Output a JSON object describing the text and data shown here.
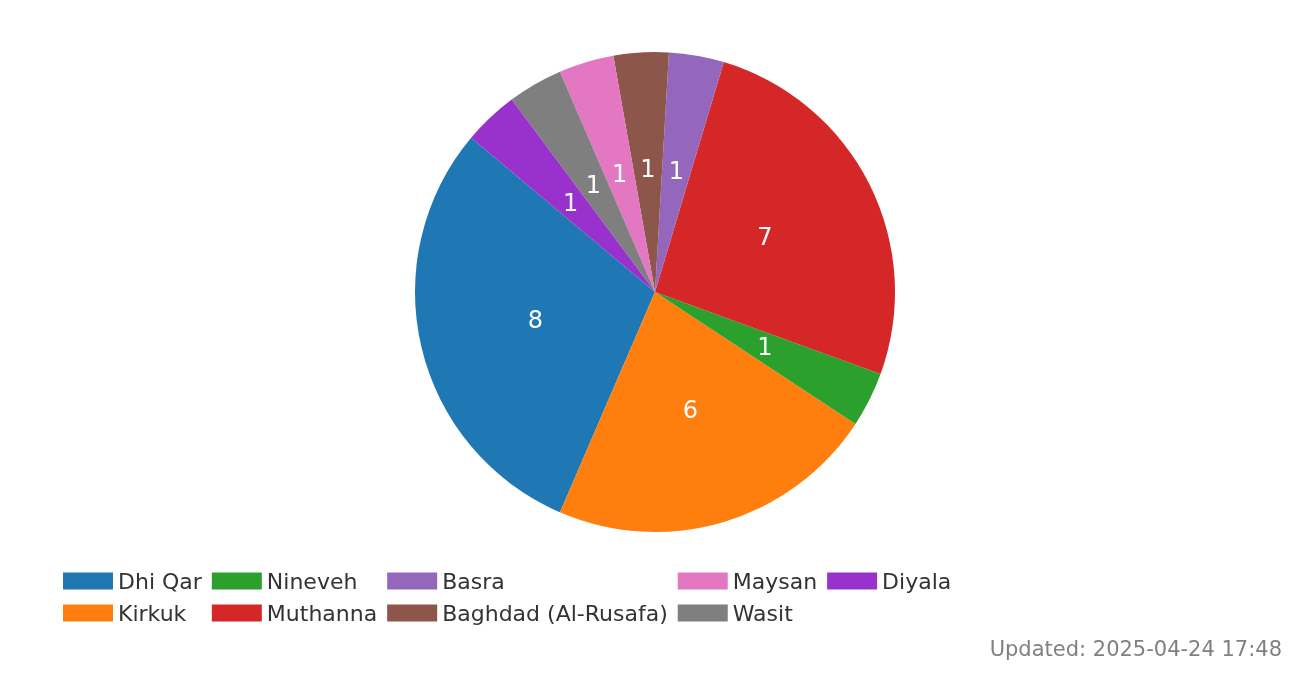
{
  "chart_data": {
    "type": "pie",
    "categories": [
      "Dhi Qar",
      "Kirkuk",
      "Nineveh",
      "Muthanna",
      "Basra",
      "Baghdad (Al-Rusafa)",
      "Maysan",
      "Wasit",
      "Diyala"
    ],
    "values": [
      8,
      6,
      1,
      7,
      1,
      1,
      1,
      1,
      1
    ],
    "colors": [
      "#1f77b4",
      "#ff7f0e",
      "#2ca02c",
      "#d62728",
      "#9467bd",
      "#8c564b",
      "#e377c2",
      "#7f7f7f",
      "#9932cc"
    ],
    "data_labels": true,
    "legend": "bottom",
    "annotations": [
      "Updated: 2025-04-24 17:48"
    ]
  }
}
